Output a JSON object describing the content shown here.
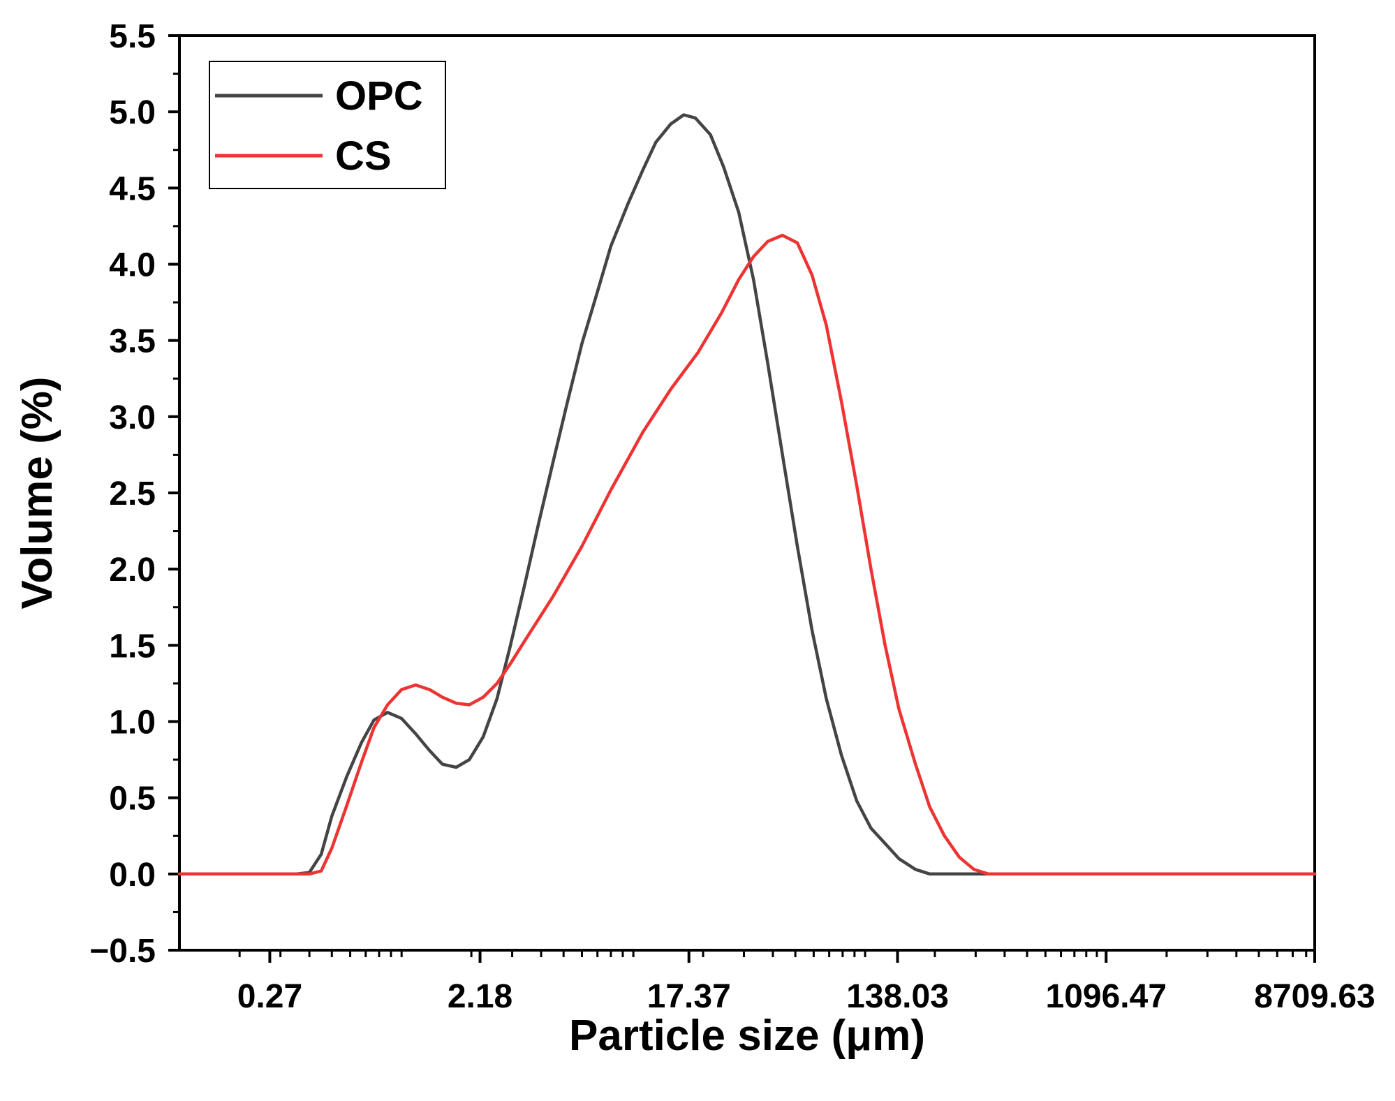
{
  "chart_data": {
    "type": "line",
    "title": "",
    "xlabel": "Particle size (μm)",
    "ylabel": "Volume (%)",
    "x_scale": "log",
    "xlim": [
      0.11,
      8709.63
    ],
    "ylim": [
      -0.5,
      5.5
    ],
    "grid": false,
    "legend_position": "top-left",
    "x_ticks": [
      0.27,
      2.18,
      17.37,
      138.03,
      1096.47,
      8709.63
    ],
    "x_tick_labels": [
      "0.27",
      "2.18",
      "17.37",
      "138.03",
      "1096.47",
      "8709.63"
    ],
    "y_ticks": [
      -0.5,
      0.0,
      0.5,
      1.0,
      1.5,
      2.0,
      2.5,
      3.0,
      3.5,
      4.0,
      4.5,
      5.0,
      5.5
    ],
    "y_tick_labels": [
      "−0.5",
      "0.0",
      "0.5",
      "1.0",
      "1.5",
      "2.0",
      "2.5",
      "3.0",
      "3.5",
      "4.0",
      "4.5",
      "5.0",
      "5.5"
    ],
    "series": [
      {
        "name": "OPC",
        "color": "#444444",
        "points": [
          [
            0.11,
            0.0
          ],
          [
            0.35,
            0.0
          ],
          [
            0.4,
            0.01
          ],
          [
            0.45,
            0.13
          ],
          [
            0.5,
            0.38
          ],
          [
            0.58,
            0.64
          ],
          [
            0.67,
            0.86
          ],
          [
            0.76,
            1.01
          ],
          [
            0.87,
            1.06
          ],
          [
            1.0,
            1.02
          ],
          [
            1.15,
            0.92
          ],
          [
            1.32,
            0.81
          ],
          [
            1.5,
            0.72
          ],
          [
            1.72,
            0.7
          ],
          [
            1.96,
            0.75
          ],
          [
            2.25,
            0.9
          ],
          [
            2.58,
            1.15
          ],
          [
            2.95,
            1.5
          ],
          [
            3.4,
            1.9
          ],
          [
            3.9,
            2.3
          ],
          [
            4.5,
            2.7
          ],
          [
            5.2,
            3.1
          ],
          [
            6.0,
            3.48
          ],
          [
            7.0,
            3.82
          ],
          [
            8.0,
            4.12
          ],
          [
            9.5,
            4.4
          ],
          [
            11.0,
            4.62
          ],
          [
            12.5,
            4.8
          ],
          [
            14.5,
            4.92
          ],
          [
            16.5,
            4.98
          ],
          [
            18.5,
            4.96
          ],
          [
            21.5,
            4.85
          ],
          [
            24.5,
            4.64
          ],
          [
            28.5,
            4.34
          ],
          [
            33.0,
            3.9
          ],
          [
            38.0,
            3.35
          ],
          [
            44.0,
            2.75
          ],
          [
            51.0,
            2.15
          ],
          [
            59.0,
            1.6
          ],
          [
            68.0,
            1.15
          ],
          [
            79.0,
            0.78
          ],
          [
            92.0,
            0.48
          ],
          [
            106.0,
            0.3
          ],
          [
            122.0,
            0.2
          ],
          [
            140.0,
            0.1
          ],
          [
            165.0,
            0.03
          ],
          [
            190.0,
            0.0
          ],
          [
            8709.63,
            0.0
          ]
        ]
      },
      {
        "name": "CS",
        "color": "#ee3333",
        "points": [
          [
            0.11,
            0.0
          ],
          [
            0.35,
            0.0
          ],
          [
            0.4,
            0.0
          ],
          [
            0.45,
            0.02
          ],
          [
            0.5,
            0.17
          ],
          [
            0.58,
            0.45
          ],
          [
            0.67,
            0.73
          ],
          [
            0.76,
            0.96
          ],
          [
            0.87,
            1.11
          ],
          [
            1.0,
            1.21
          ],
          [
            1.15,
            1.24
          ],
          [
            1.32,
            1.21
          ],
          [
            1.5,
            1.16
          ],
          [
            1.72,
            1.12
          ],
          [
            1.96,
            1.11
          ],
          [
            2.25,
            1.16
          ],
          [
            2.58,
            1.25
          ],
          [
            2.95,
            1.38
          ],
          [
            3.4,
            1.53
          ],
          [
            4.5,
            1.82
          ],
          [
            6.0,
            2.15
          ],
          [
            8.0,
            2.52
          ],
          [
            11.0,
            2.9
          ],
          [
            14.5,
            3.18
          ],
          [
            19.0,
            3.42
          ],
          [
            24.0,
            3.68
          ],
          [
            28.5,
            3.9
          ],
          [
            33.0,
            4.05
          ],
          [
            38.0,
            4.15
          ],
          [
            44.0,
            4.19
          ],
          [
            51.0,
            4.14
          ],
          [
            59.0,
            3.93
          ],
          [
            68.0,
            3.6
          ],
          [
            79.0,
            3.1
          ],
          [
            92.0,
            2.55
          ],
          [
            106.0,
            2.0
          ],
          [
            122.0,
            1.5
          ],
          [
            140.0,
            1.08
          ],
          [
            165.0,
            0.72
          ],
          [
            190.0,
            0.44
          ],
          [
            220.0,
            0.25
          ],
          [
            255.0,
            0.11
          ],
          [
            295.0,
            0.03
          ],
          [
            340.0,
            0.0
          ],
          [
            8709.63,
            0.0
          ]
        ]
      }
    ]
  }
}
